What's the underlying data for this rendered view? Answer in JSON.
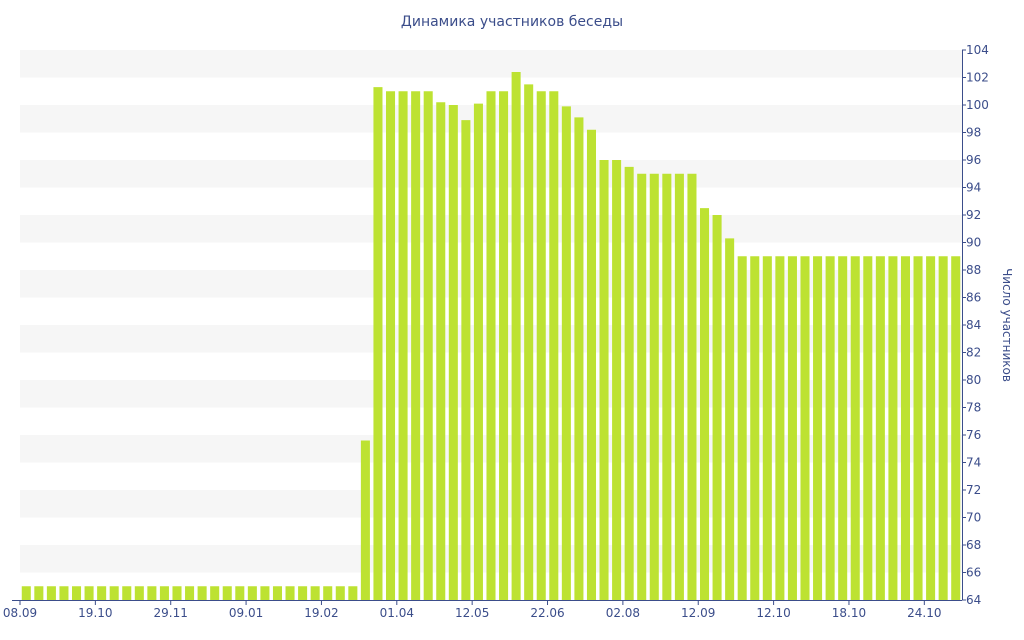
{
  "chart_data": {
    "type": "bar",
    "title": "Динамика участников беседы",
    "ylabel": "Число участников",
    "xlabel": "",
    "ylim": [
      64,
      104
    ],
    "y_ticks": [
      "64",
      "66",
      "68",
      "70",
      "72",
      "74",
      "76",
      "78",
      "80",
      "82",
      "84",
      "86",
      "88",
      "90",
      "92",
      "94",
      "96",
      "98",
      "100",
      "102",
      "104"
    ],
    "x_tick_labels": [
      {
        "index": 0,
        "label": "08.09"
      },
      {
        "index": 6,
        "label": "19.10"
      },
      {
        "index": 12,
        "label": "29.11"
      },
      {
        "index": 18,
        "label": "09.01"
      },
      {
        "index": 24,
        "label": "19.02"
      },
      {
        "index": 30,
        "label": "01.04"
      },
      {
        "index": 36,
        "label": "12.05"
      },
      {
        "index": 42,
        "label": "22.06"
      },
      {
        "index": 48,
        "label": "02.08"
      },
      {
        "index": 54,
        "label": "12.09"
      },
      {
        "index": 60,
        "label": "12.10"
      },
      {
        "index": 66,
        "label": "18.10"
      },
      {
        "index": 72,
        "label": "24.10"
      }
    ],
    "values": [
      65,
      65,
      65,
      65,
      65,
      65,
      65,
      65,
      65,
      65,
      65,
      65,
      65,
      65,
      65,
      65,
      65,
      65,
      65,
      65,
      65,
      65,
      65,
      65,
      65,
      65,
      65,
      75.6,
      101.3,
      101,
      101,
      101,
      101,
      100.2,
      100,
      98.9,
      100.1,
      101,
      101,
      102.4,
      101.5,
      101,
      101,
      99.9,
      99.1,
      98.2,
      96,
      96,
      95.5,
      95,
      95,
      95,
      95,
      95,
      92.5,
      92,
      90.3,
      89,
      89,
      89,
      89,
      89,
      89,
      89,
      89,
      89,
      89,
      89,
      89,
      89,
      89,
      89,
      89,
      89,
      89
    ],
    "grid": "horizontal-bands",
    "legend": "none",
    "colors": {
      "bar": "#bde232",
      "band": "#f6f6f6",
      "text": "#3b4d8a",
      "axis": "#3b4d8a"
    }
  }
}
